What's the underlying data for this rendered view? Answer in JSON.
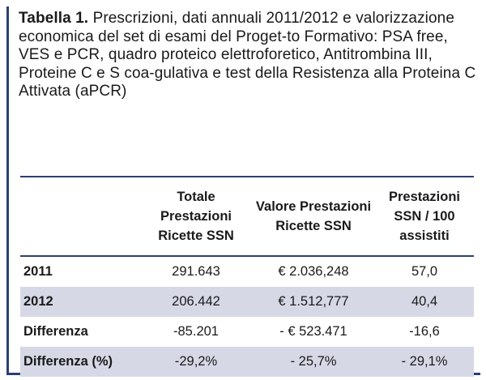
{
  "caption": {
    "label": "Tabella 1.",
    "text": " Prescrizioni, dati annuali 2011/2012 e valorizzazione economica del set di esami del Proget-to Formativo: PSA free, VES e PCR, quadro  proteico elettroforetico, Antitrombina III, Proteine C e S coa-gulativa e test della Resistenza alla Proteina C Attivata (aPCR)"
  },
  "table": {
    "headers": [
      "",
      "Totale Prestazioni Ricette SSN",
      "Valore Prestazioni Ricette SSN",
      "Prestazioni SSN / 100 assistiti"
    ],
    "rows": [
      [
        "2011",
        "291.643",
        "€ 2.036,248",
        "57,0"
      ],
      [
        "2012",
        "206.442",
        "€ 1.512,777",
        "40,4"
      ],
      [
        "Differenza",
        "-85.201",
        "- € 523.471",
        "-16,6"
      ],
      [
        "Differenza (%)",
        "-29,2%",
        "- 25,7%",
        "- 29,1%"
      ]
    ]
  }
}
